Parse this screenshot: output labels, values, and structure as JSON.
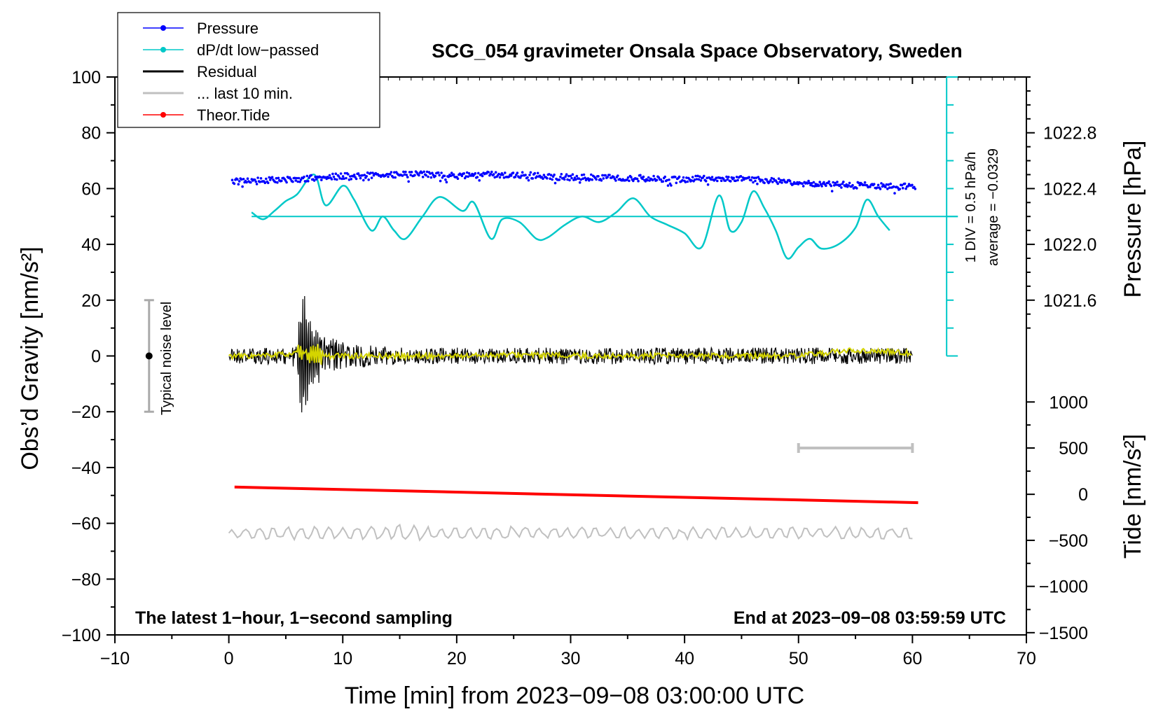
{
  "chart_data": {
    "type": "line",
    "title": "SCG_054 gravimeter Onsala Space Observatory, Sweden",
    "xlabel": "Time [min] from 2023−09−08 03:00:00 UTC",
    "ylabel_left": "Obs’d Gravity [nm/s²]",
    "ylabel_right_pressure": "Pressure [hPa]",
    "ylabel_right_tide": "Tide [nm/s²]",
    "xlim": [
      -10,
      70
    ],
    "ylim": [
      -100,
      100
    ],
    "x_ticks": [
      -10,
      0,
      10,
      20,
      30,
      40,
      50,
      60,
      70
    ],
    "x_tick_labels": [
      "−10",
      "0",
      "10",
      "20",
      "30",
      "40",
      "50",
      "60",
      "70"
    ],
    "y_ticks": [
      100,
      80,
      60,
      40,
      20,
      0,
      -20,
      -40,
      -60,
      -80,
      -100
    ],
    "y_tick_labels": [
      "100",
      "80",
      "60",
      "40",
      "20",
      "0",
      "−20",
      "−40",
      "−60",
      "−80",
      "−100"
    ],
    "pressure_axis": {
      "ticks": [
        1022.8,
        1022.4,
        1022.0,
        1021.6
      ],
      "labels": [
        "1022.8",
        "1022.4",
        "1022.0",
        "1021.6"
      ],
      "gravity_equiv": [
        80,
        60,
        40,
        20
      ]
    },
    "tide_axis": {
      "ticks": [
        1000,
        500,
        0,
        -500,
        -1000,
        -1500
      ],
      "labels": [
        "1000",
        "500",
        "0",
        "−500",
        "−1000",
        "−1500"
      ],
      "gravity_equiv": [
        -16.5,
        -33.0,
        -49.6,
        -66.1,
        -82.6,
        -99.2
      ]
    },
    "legend": {
      "position": "top-left",
      "items": [
        {
          "name": "Pressure",
          "color": "#0000ff",
          "marker": "dot"
        },
        {
          "name": "dP/dt low−passed",
          "color": "#00c8c8",
          "marker": "dot"
        },
        {
          "name": "Residual",
          "color": "#000000",
          "marker": "none"
        },
        {
          "name": "... last 10 min.",
          "color": "#c0c0c0",
          "marker": "none"
        },
        {
          "name": "Theor.Tide",
          "color": "#ff0000",
          "marker": "dot"
        }
      ]
    },
    "series": [
      {
        "name": "Pressure",
        "color": "#0000ff",
        "x": [
          0,
          5,
          10,
          15,
          20,
          25,
          30,
          35,
          40,
          45,
          50,
          55,
          60
        ],
        "y": [
          62.6,
          63.2,
          64.4,
          65.2,
          64.8,
          65.0,
          64.0,
          63.8,
          63.4,
          63.6,
          62.0,
          61.2,
          60.6
        ]
      },
      {
        "name": "dP/dt low−passed",
        "color": "#00c8c8",
        "x": [
          2,
          3,
          4,
          5,
          6,
          7.5,
          8.5,
          10,
          11,
          12.5,
          13.5,
          14.5,
          15.5,
          17,
          18.5,
          20.5,
          21.5,
          23,
          24,
          25.5,
          27,
          28,
          29.5,
          31,
          32.5,
          34,
          35.5,
          37,
          38.5,
          40,
          41.5,
          43,
          44,
          45,
          46,
          47,
          48,
          49,
          50,
          51,
          52,
          53.5,
          55,
          56,
          57,
          58
        ],
        "y": [
          51.5,
          49.0,
          52.0,
          55.5,
          58.0,
          65.0,
          54.0,
          61.0,
          56.0,
          45.0,
          50.0,
          45.0,
          42.0,
          50.0,
          57.0,
          52.0,
          55.0,
          42.0,
          49.0,
          48.0,
          42.0,
          42.5,
          47.0,
          50.0,
          48.0,
          51.5,
          56.5,
          50.0,
          47.0,
          44.0,
          39.0,
          57.5,
          45.0,
          48.0,
          59.0,
          53.0,
          45.0,
          35.0,
          39.0,
          42.0,
          38.5,
          40.0,
          46.0,
          56.0,
          50.0,
          45.0
        ]
      },
      {
        "name": "Residual",
        "color": "#000000",
        "x": [
          0,
          4,
          5,
          6,
          6.3,
          6.6,
          7,
          7.5,
          8,
          9,
          10,
          11,
          12,
          15,
          20,
          30,
          40,
          50,
          55,
          60
        ],
        "y": [
          0,
          0,
          0,
          -6,
          20,
          -23,
          14,
          -9,
          10,
          -7,
          6,
          -5,
          4,
          3,
          3,
          3,
          3,
          3,
          3,
          3
        ]
      },
      {
        "name": "... last 10 min.",
        "color": "#c0c0c0",
        "x": [
          0,
          60
        ],
        "y": [
          -63.5,
          -63.5
        ]
      },
      {
        "name": "Theor.Tide",
        "color": "#ff0000",
        "x": [
          0.5,
          60.5
        ],
        "y": [
          -47.0,
          -52.6
        ]
      },
      {
        "name": "Smoothed residual",
        "color": "#d4d400",
        "x": [
          0,
          3,
          6,
          8,
          10,
          15,
          20,
          25,
          30,
          35,
          40,
          45,
          50,
          52,
          55,
          58,
          60
        ],
        "y": [
          0,
          0,
          1,
          0,
          0,
          0,
          0,
          0.5,
          0,
          0,
          0,
          0,
          0,
          1,
          2,
          1.5,
          1
        ]
      }
    ],
    "noise_bar": {
      "label": "Typical noise level",
      "x": -7,
      "ymin": -20,
      "ymax": 20,
      "center": 0
    },
    "range_bar": {
      "x_start": 50,
      "x_end": 60,
      "y": -33,
      "color": "#c0c0c0"
    },
    "scale_bar": {
      "x": 63,
      "ymin": 0,
      "ymax": 100,
      "average_y": 50,
      "label1": "1 DIV = 0.5 hPa/h",
      "label2": "average = −0.0329",
      "color": "#00c8c8"
    },
    "note_left": "The latest 1−hour, 1−second sampling",
    "note_right": "End at 2023−09−08 03:59:59 UTC"
  }
}
